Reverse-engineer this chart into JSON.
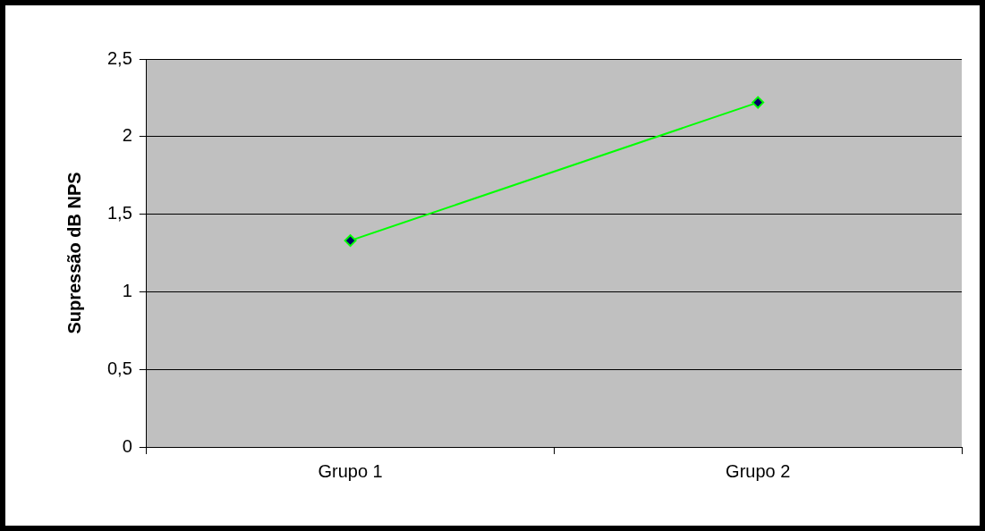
{
  "chart_data": {
    "type": "line",
    "ylabel": "Supressão dB NPS",
    "categories": [
      "Grupo 1",
      "Grupo 2"
    ],
    "series": [
      {
        "color": "#00ff00",
        "values": [
          1.33,
          2.22
        ]
      }
    ],
    "ylim": [
      0,
      2.5
    ],
    "yticks": [
      {
        "value": 0,
        "label": "0"
      },
      {
        "value": 0.5,
        "label": "0,5"
      },
      {
        "value": 1,
        "label": "1"
      },
      {
        "value": 1.5,
        "label": "1,5"
      },
      {
        "value": 2,
        "label": "2"
      },
      {
        "value": 2.5,
        "label": "2,5"
      }
    ],
    "grid": "y",
    "legend": false,
    "marker": "diamond",
    "line_style": "solid"
  }
}
